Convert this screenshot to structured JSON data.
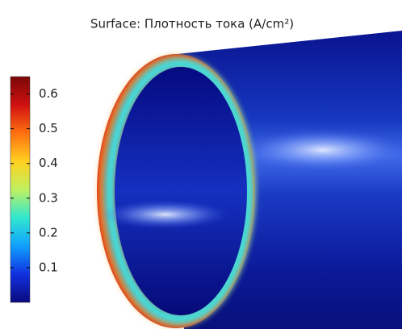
{
  "chart_data": {
    "type": "surface",
    "title": "Surface: Плотность тока (A/cm²)",
    "colorbar": {
      "lim": [
        0,
        0.65
      ],
      "ticks": [
        0.1,
        0.2,
        0.3,
        0.4,
        0.5,
        0.6
      ],
      "colormap": [
        "#0a0a7e",
        "#1030e0",
        "#10a0ff",
        "#30e8d0",
        "#c0f060",
        "#ffd020",
        "#ff7010",
        "#d01010",
        "#7a0808"
      ]
    }
  }
}
